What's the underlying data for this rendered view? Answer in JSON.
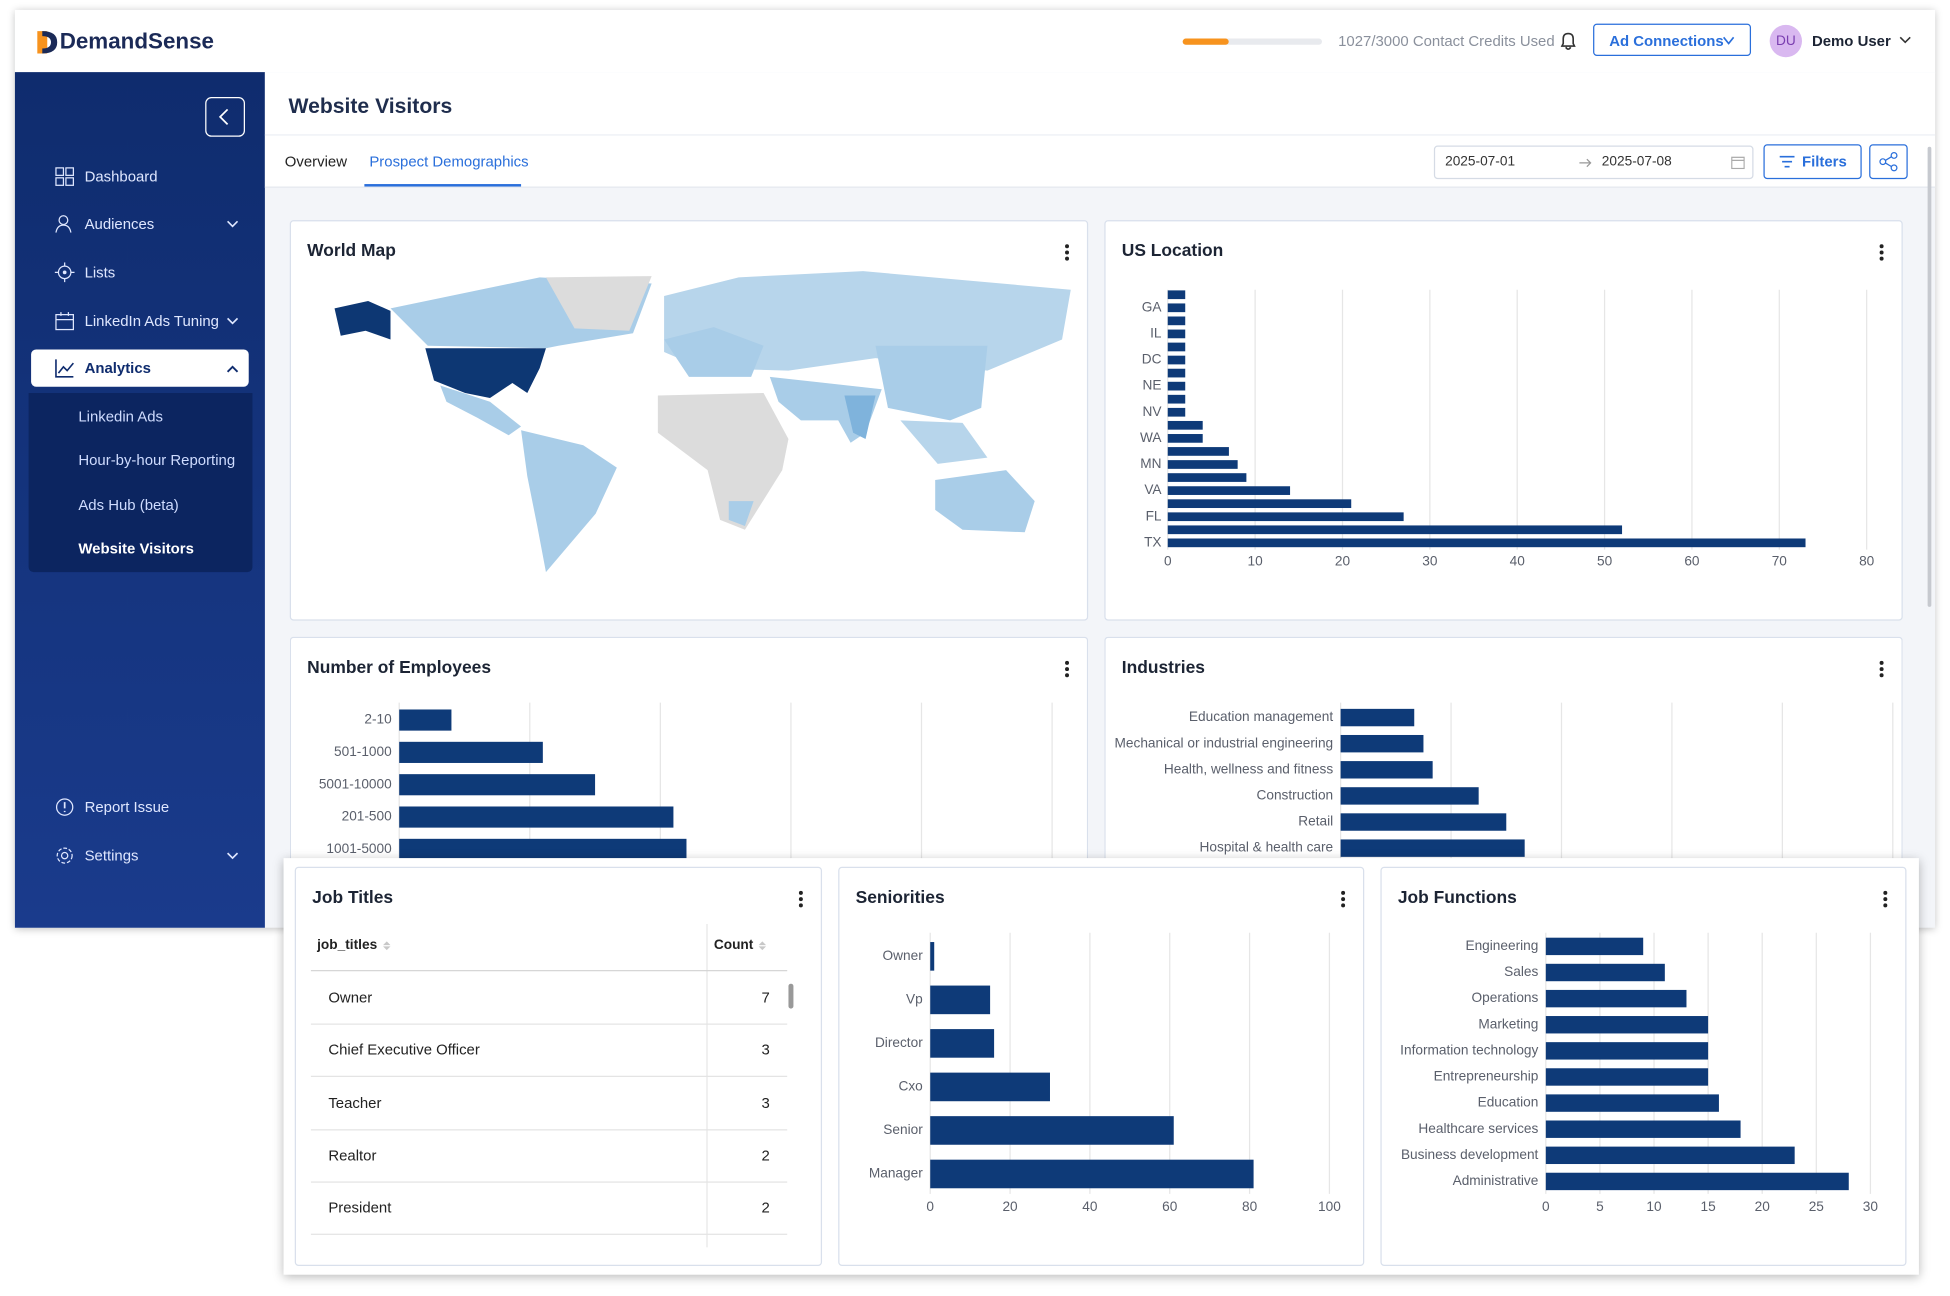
{
  "header": {
    "brand": "DemandSense",
    "credits": "1027/3000 Contact Credits Used",
    "button": "Ad Connections",
    "user_initials": "DU",
    "user_name": "Demo User"
  },
  "sidebar": {
    "items": [
      "Dashboard",
      "Audiences",
      "Lists",
      "LinkedIn Ads Tuning",
      "Analytics"
    ],
    "analytics_items": [
      "Linkedin Ads",
      "Hour-by-hour Reporting",
      "Ads Hub (beta)",
      "Website Visitors"
    ],
    "footer": [
      "Report Issue",
      "Settings"
    ]
  },
  "page": {
    "title": "Website Visitors",
    "tabs": [
      "Overview",
      "Prospect Demographics"
    ],
    "date_from": "2025-07-01",
    "date_to": "2025-07-08",
    "filters": "Filters"
  },
  "world_map": {
    "title": "World Map"
  },
  "table": {
    "title": "Job Titles",
    "columns": [
      "job_titles",
      "Count"
    ],
    "rows": [
      [
        "Owner",
        7
      ],
      [
        "Chief Executive Officer",
        3
      ],
      [
        "Teacher",
        3
      ],
      [
        "Realtor",
        2
      ],
      [
        "President",
        2
      ]
    ]
  },
  "chart_data": [
    {
      "type": "bar",
      "orientation": "horizontal",
      "title": "US Location",
      "color": "#0e3a78",
      "categories": [
        null,
        "GA",
        null,
        "IL",
        null,
        "DC",
        null,
        "NE",
        null,
        "NV",
        null,
        "WA",
        null,
        "MN",
        null,
        "VA",
        null,
        "FL",
        null,
        "TX"
      ],
      "values": [
        2,
        2,
        2,
        2,
        2,
        2,
        2,
        2,
        2,
        2,
        4,
        4,
        7,
        8,
        9,
        14,
        21,
        27,
        52,
        73
      ],
      "xlim": [
        0,
        80
      ],
      "xticks": [
        0,
        10,
        20,
        30,
        40,
        50,
        60,
        70,
        80
      ],
      "grid": true
    },
    {
      "type": "bar",
      "orientation": "horizontal",
      "title": "Number of Employees",
      "color": "#0e3a78",
      "categories": [
        "2-10",
        "501-1000",
        "5001-10000",
        "201-500",
        "1001-5000"
      ],
      "values": [
        4,
        11,
        15,
        21,
        22
      ],
      "xlim": [
        0,
        50
      ],
      "grid": true
    },
    {
      "type": "bar",
      "orientation": "horizontal",
      "title": "Industries",
      "color": "#0e3a78",
      "categories": [
        "Education management",
        "Mechanical or industrial engineering",
        "Health, wellness and fitness",
        "Construction",
        "Retail",
        "Hospital & health care"
      ],
      "values": [
        8,
        9,
        10,
        15,
        18,
        20
      ],
      "xlim": [
        0,
        60
      ],
      "grid": true
    },
    {
      "type": "bar",
      "orientation": "horizontal",
      "title": "Seniorities",
      "color": "#0e3a78",
      "categories": [
        "Owner",
        "Vp",
        "Director",
        "Cxo",
        "Senior",
        "Manager"
      ],
      "values": [
        1,
        15,
        16,
        30,
        61,
        81
      ],
      "xlim": [
        0,
        100
      ],
      "xticks": [
        0,
        20,
        40,
        60,
        80,
        100
      ],
      "grid": true
    },
    {
      "type": "bar",
      "orientation": "horizontal",
      "title": "Job Functions",
      "color": "#0e3a78",
      "categories": [
        "Engineering",
        "Sales",
        "Operations",
        "Marketing",
        "Information technology",
        "Entrepreneurship",
        "Education",
        "Healthcare services",
        "Business development",
        "Administrative"
      ],
      "values": [
        9,
        11,
        13,
        15,
        15,
        15,
        16,
        18,
        23,
        28
      ],
      "xlim": [
        0,
        30
      ],
      "xticks": [
        0,
        5,
        10,
        15,
        20,
        25,
        30
      ],
      "grid": true
    }
  ]
}
